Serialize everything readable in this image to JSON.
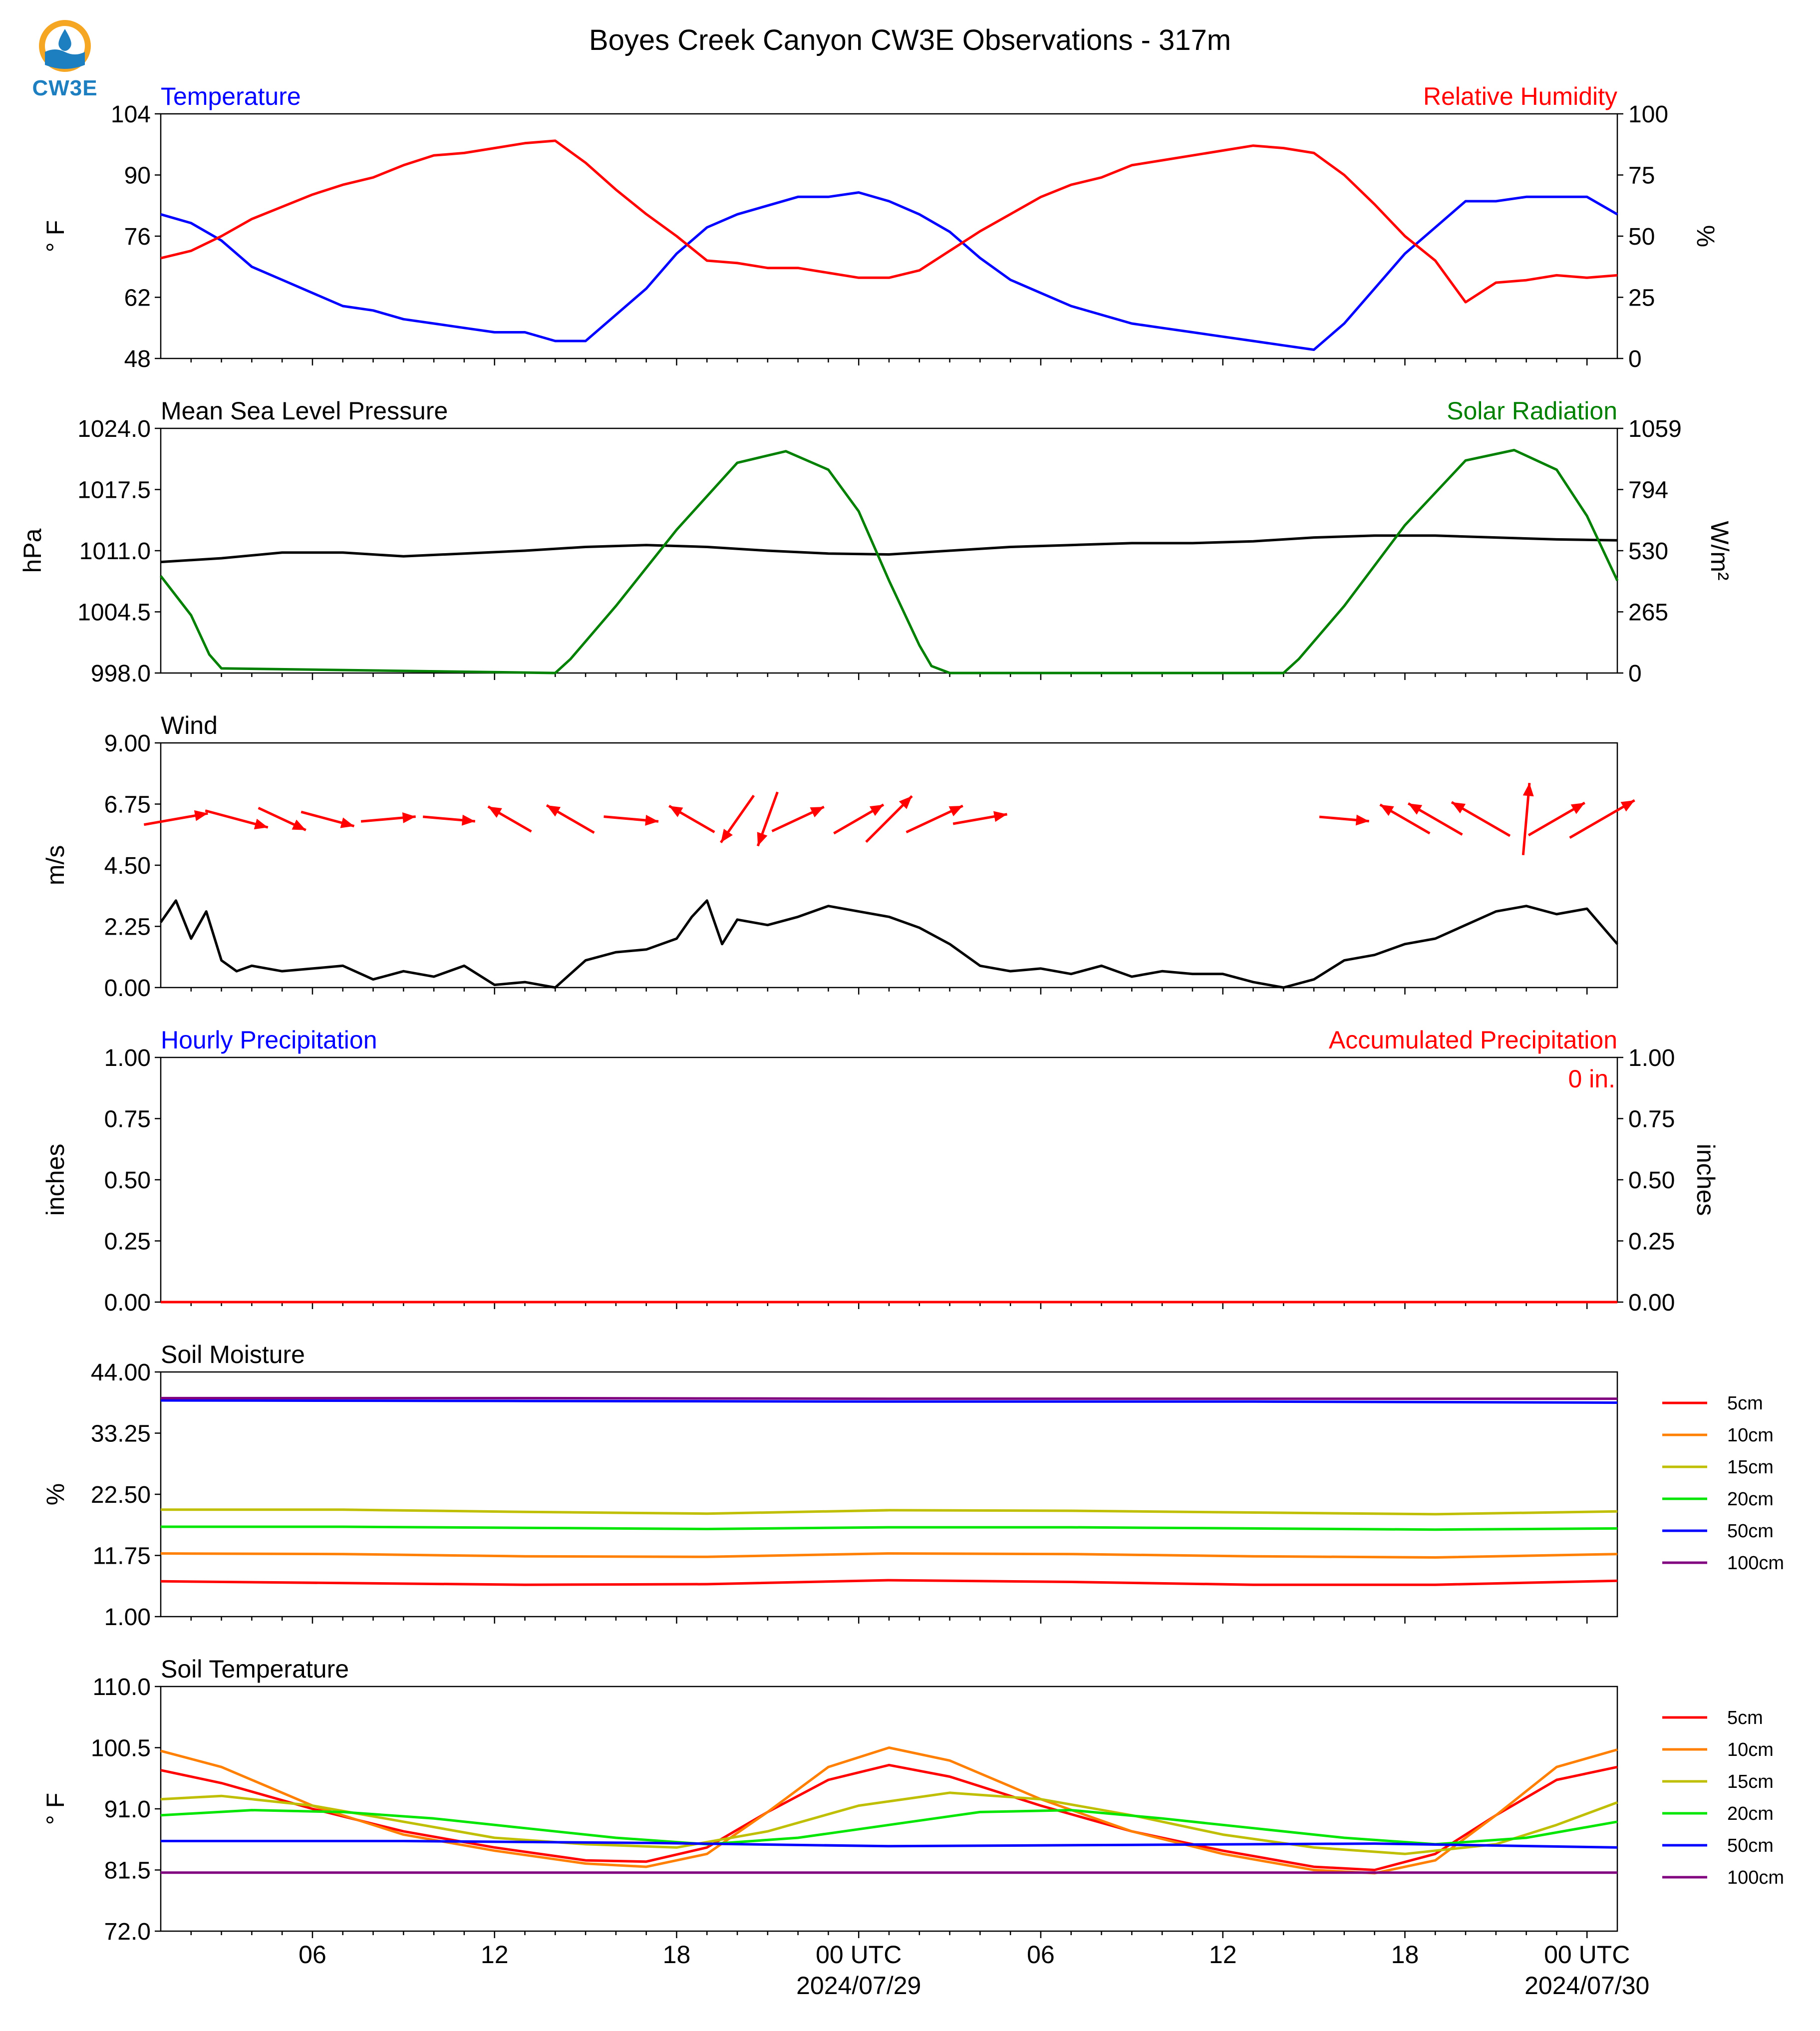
{
  "title": "Boyes Creek Canyon CW3E Observations - 317m",
  "logo": {
    "text": "CW3E",
    "icon": "cw3e-logo-icon"
  },
  "x_axis": {
    "tick_labels": [
      "06",
      "12",
      "18",
      "00 UTC",
      "06",
      "12",
      "18",
      "00 UTC"
    ],
    "tick_hours": [
      6,
      12,
      18,
      24,
      30,
      36,
      42,
      48
    ],
    "date_labels": [
      "2024/07/29",
      "2024/07/30"
    ],
    "date_label_hours": [
      24,
      48
    ],
    "range_hours": [
      1,
      49
    ]
  },
  "chart_data": [
    {
      "type": "line",
      "title_left": "Temperature",
      "title_right": "Relative Humidity",
      "ylabel_left": "° F",
      "ylabel_right": "%",
      "ylim_left": [
        48,
        104
      ],
      "yticks_left": [
        "48",
        "62",
        "76",
        "90",
        "104"
      ],
      "ylim_right": [
        0,
        100
      ],
      "yticks_right": [
        "0",
        "25",
        "50",
        "75",
        "100"
      ],
      "colors": {
        "left": "#0000ff",
        "right": "#ff0000"
      },
      "series": [
        {
          "name": "Temperature",
          "axis": "left",
          "color": "#0000ff",
          "x": [
            1,
            2,
            3,
            4,
            5,
            6,
            7,
            8,
            9,
            10,
            11,
            12,
            13,
            14,
            15,
            16,
            17,
            18,
            19,
            20,
            21,
            22,
            23,
            24,
            25,
            26,
            27,
            28,
            29,
            30,
            31,
            32,
            33,
            34,
            35,
            36,
            37,
            38,
            39,
            40,
            41,
            42,
            43,
            44,
            45,
            46,
            47,
            48,
            49
          ],
          "y": [
            81,
            79,
            75,
            69,
            66,
            63,
            60,
            59,
            57,
            56,
            55,
            54,
            54,
            52,
            52,
            58,
            64,
            72,
            78,
            81,
            83,
            85,
            85,
            86,
            84,
            81,
            77,
            71,
            66,
            63,
            60,
            58,
            56,
            55,
            54,
            53,
            52,
            51,
            50,
            56,
            64,
            72,
            78,
            84,
            84,
            85,
            85,
            85,
            81
          ]
        },
        {
          "name": "Relative Humidity",
          "axis": "right",
          "color": "#ff0000",
          "x": [
            1,
            2,
            3,
            4,
            5,
            6,
            7,
            8,
            9,
            10,
            11,
            12,
            13,
            14,
            15,
            16,
            17,
            18,
            19,
            20,
            21,
            22,
            23,
            24,
            25,
            26,
            27,
            28,
            29,
            30,
            31,
            32,
            33,
            34,
            35,
            36,
            37,
            38,
            39,
            40,
            41,
            42,
            43,
            44,
            45,
            46,
            47,
            48,
            49
          ],
          "y": [
            41,
            44,
            50,
            57,
            62,
            67,
            71,
            74,
            79,
            83,
            84,
            86,
            88,
            89,
            80,
            69,
            59,
            50,
            40,
            39,
            37,
            37,
            35,
            33,
            33,
            36,
            44,
            52,
            59,
            66,
            71,
            74,
            79,
            81,
            83,
            85,
            87,
            86,
            84,
            75,
            63,
            50,
            40,
            23,
            31,
            32,
            34,
            33,
            34
          ]
        }
      ]
    },
    {
      "type": "line",
      "title_left": "Mean Sea Level Pressure",
      "title_right": "Solar Radiation",
      "ylabel_left": "hPa",
      "ylabel_right": "W/m²",
      "ylim_left": [
        998.0,
        1024.0
      ],
      "yticks_left": [
        "998.0",
        "1004.5",
        "1011.0",
        "1017.5",
        "1024.0"
      ],
      "ylim_right": [
        0,
        1059
      ],
      "yticks_right": [
        "0",
        "265",
        "530",
        "794",
        "1059"
      ],
      "colors": {
        "left": "#000000",
        "right": "#008000"
      },
      "series": [
        {
          "name": "Mean Sea Level Pressure",
          "axis": "left",
          "color": "#000000",
          "x": [
            1,
            3,
            5,
            7,
            9,
            11,
            13,
            15,
            17,
            19,
            21,
            23,
            25,
            27,
            29,
            31,
            33,
            35,
            37,
            39,
            41,
            43,
            45,
            47,
            49
          ],
          "y": [
            1009.8,
            1010.2,
            1010.8,
            1010.8,
            1010.4,
            1010.7,
            1011.0,
            1011.4,
            1011.6,
            1011.4,
            1011.0,
            1010.7,
            1010.6,
            1011.0,
            1011.4,
            1011.6,
            1011.8,
            1011.8,
            1012.0,
            1012.4,
            1012.6,
            1012.6,
            1012.4,
            1012.2,
            1012.1
          ]
        },
        {
          "name": "Solar Radiation",
          "axis": "right",
          "color": "#008000",
          "x": [
            1,
            2,
            2.6,
            3,
            14,
            14.5,
            16,
            18,
            20,
            21.6,
            23,
            24,
            25,
            26,
            26.4,
            27,
            38,
            38.5,
            40,
            42,
            44,
            45.6,
            47,
            48,
            49
          ],
          "y": [
            420,
            250,
            80,
            20,
            0,
            60,
            290,
            620,
            910,
            960,
            880,
            700,
            400,
            120,
            30,
            0,
            0,
            60,
            290,
            640,
            920,
            965,
            880,
            680,
            400
          ]
        }
      ]
    },
    {
      "type": "line",
      "title_left": "Wind",
      "ylabel_left": "m/s",
      "ylim_left": [
        0.0,
        9.0
      ],
      "yticks_left": [
        "0.00",
        "2.25",
        "4.50",
        "6.75",
        "9.00"
      ],
      "colors": {
        "speed": "#000000",
        "arrows": "#ff0000"
      },
      "series": [
        {
          "name": "Wind Speed",
          "axis": "left",
          "color": "#000000",
          "x": [
            1,
            1.5,
            2,
            2.5,
            3,
            3.5,
            4,
            5,
            6,
            7,
            8,
            9,
            10,
            11,
            12,
            13,
            14,
            15,
            16,
            17,
            18,
            18.5,
            19,
            19.5,
            20,
            21,
            22,
            23,
            24,
            25,
            26,
            27,
            28,
            29,
            30,
            31,
            32,
            33,
            34,
            35,
            36,
            37,
            38,
            39,
            40,
            41,
            42,
            43,
            44,
            45,
            46,
            47,
            48,
            49
          ],
          "y": [
            2.4,
            3.2,
            1.8,
            2.8,
            1.0,
            0.6,
            0.8,
            0.6,
            0.7,
            0.8,
            0.3,
            0.6,
            0.4,
            0.8,
            0.1,
            0.2,
            0.0,
            1.0,
            1.3,
            1.4,
            1.8,
            2.6,
            3.2,
            1.6,
            2.5,
            2.3,
            2.6,
            3.0,
            2.8,
            2.6,
            2.2,
            1.6,
            0.8,
            0.6,
            0.7,
            0.5,
            0.8,
            0.4,
            0.6,
            0.5,
            0.5,
            0.2,
            0.0,
            0.3,
            1.0,
            1.2,
            1.6,
            1.8,
            2.3,
            2.8,
            3.0,
            2.7,
            2.9,
            1.6
          ]
        },
        {
          "name": "Wind Direction",
          "type": "arrows",
          "color": "#ff0000",
          "x": [
            1.5,
            3.5,
            5,
            6.5,
            8.5,
            10.5,
            12.5,
            14.5,
            16.5,
            18.5,
            20,
            21,
            22,
            24,
            25,
            26.5,
            28,
            40,
            42,
            43,
            44.5,
            46,
            47,
            48.5
          ],
          "speed": [
            2.6,
            2.6,
            2.1,
            2.2,
            2.2,
            2.1,
            2.0,
            2.2,
            2.2,
            2.1,
            2.3,
            2.3,
            2.3,
            2.3,
            2.6,
            2.5,
            2.2,
            2.0,
            2.3,
            2.5,
            2.7,
            2.9,
            2.6,
            3.0
          ],
          "direction_deg": [
            260,
            285,
            295,
            285,
            265,
            275,
            120,
            120,
            275,
            120,
            35,
            20,
            245,
            240,
            225,
            245,
            260,
            275,
            120,
            120,
            120,
            185,
            240,
            240
          ]
        }
      ]
    },
    {
      "type": "line",
      "title_left": "Hourly Precipitation",
      "title_right": "Accumulated Precipitation",
      "ylabel_left": "inches",
      "ylabel_right": "inches",
      "ylim_left": [
        0.0,
        1.0
      ],
      "yticks_left": [
        "0.00",
        "0.25",
        "0.50",
        "0.75",
        "1.00"
      ],
      "ylim_right": [
        0.0,
        1.0
      ],
      "yticks_right": [
        "0.00",
        "0.25",
        "0.50",
        "0.75",
        "1.00"
      ],
      "annotation": "0 in.",
      "colors": {
        "left": "#0000ff",
        "right": "#ff0000"
      },
      "series": [
        {
          "name": "Accumulated Precipitation",
          "axis": "right",
          "color": "#ff0000",
          "x": [
            1,
            49
          ],
          "y": [
            0,
            0
          ]
        }
      ]
    },
    {
      "type": "line",
      "title_left": "Soil Moisture",
      "ylabel_left": "%",
      "ylim_left": [
        1.0,
        44.0
      ],
      "yticks_left": [
        "1.00",
        "11.75",
        "22.50",
        "33.25",
        "44.00"
      ],
      "legend": "right",
      "series": [
        {
          "name": "5cm",
          "color": "#ff0000",
          "x": [
            1,
            7,
            13,
            19,
            25,
            31,
            37,
            43,
            49
          ],
          "y": [
            7.2,
            6.9,
            6.6,
            6.7,
            7.4,
            7.1,
            6.6,
            6.6,
            7.3
          ]
        },
        {
          "name": "10cm",
          "color": "#ff8000",
          "x": [
            1,
            7,
            13,
            19,
            25,
            31,
            37,
            43,
            49
          ],
          "y": [
            12.1,
            12.0,
            11.6,
            11.5,
            12.1,
            12.0,
            11.6,
            11.4,
            12.0
          ]
        },
        {
          "name": "15cm",
          "color": "#bfbf00",
          "x": [
            1,
            7,
            13,
            19,
            25,
            31,
            37,
            43,
            49
          ],
          "y": [
            19.8,
            19.8,
            19.4,
            19.1,
            19.7,
            19.6,
            19.3,
            19.0,
            19.5
          ]
        },
        {
          "name": "20cm",
          "color": "#00e600",
          "x": [
            1,
            7,
            13,
            19,
            25,
            31,
            37,
            43,
            49
          ],
          "y": [
            16.8,
            16.8,
            16.6,
            16.4,
            16.7,
            16.7,
            16.5,
            16.3,
            16.5
          ]
        },
        {
          "name": "50cm",
          "color": "#0000ff",
          "x": [
            1,
            13,
            25,
            37,
            49
          ],
          "y": [
            39.0,
            38.9,
            38.8,
            38.8,
            38.6
          ]
        },
        {
          "name": "100cm",
          "color": "#800080",
          "x": [
            1,
            13,
            25,
            37,
            49
          ],
          "y": [
            39.4,
            39.4,
            39.3,
            39.3,
            39.3
          ]
        }
      ]
    },
    {
      "type": "line",
      "title_left": "Soil Temperature",
      "ylabel_left": "° F",
      "ylim_left": [
        72.0,
        110.0
      ],
      "yticks_left": [
        "72.0",
        "81.5",
        "91.0",
        "100.5",
        "110.0"
      ],
      "legend": "right",
      "series": [
        {
          "name": "5cm",
          "color": "#ff0000",
          "x": [
            1,
            3,
            6,
            9,
            12,
            15,
            17,
            19,
            21,
            23,
            25,
            27,
            30,
            33,
            36,
            39,
            41,
            43,
            45,
            47,
            49
          ],
          "y": [
            97.0,
            95.0,
            91.0,
            87.5,
            85.0,
            83.0,
            82.8,
            85.0,
            90.5,
            95.5,
            97.8,
            96.0,
            91.5,
            87.5,
            84.5,
            82.0,
            81.5,
            84.0,
            90.0,
            95.5,
            97.5
          ]
        },
        {
          "name": "10cm",
          "color": "#ff8000",
          "x": [
            1,
            3,
            6,
            9,
            12,
            15,
            17,
            19,
            21,
            23,
            25,
            27,
            30,
            33,
            36,
            39,
            41,
            43,
            45,
            47,
            49
          ],
          "y": [
            100.0,
            97.5,
            91.5,
            87.0,
            84.5,
            82.5,
            82.0,
            84.0,
            90.5,
            97.5,
            100.5,
            98.5,
            92.5,
            87.5,
            84.0,
            81.5,
            81.0,
            83.0,
            90.0,
            97.5,
            100.2
          ]
        },
        {
          "name": "15cm",
          "color": "#bfbf00",
          "x": [
            1,
            3,
            6,
            9,
            12,
            15,
            18,
            21,
            24,
            27,
            30,
            33,
            36,
            39,
            42,
            45,
            47,
            49
          ],
          "y": [
            92.5,
            93.0,
            91.5,
            89.0,
            86.5,
            85.5,
            85.0,
            87.5,
            91.5,
            93.5,
            92.5,
            90.0,
            87.0,
            85.0,
            84.0,
            85.5,
            88.5,
            92.0
          ]
        },
        {
          "name": "20cm",
          "color": "#00e600",
          "x": [
            1,
            4,
            7,
            10,
            13,
            16,
            19,
            22,
            25,
            28,
            31,
            34,
            37,
            40,
            43,
            46,
            49
          ],
          "y": [
            90.0,
            90.8,
            90.5,
            89.5,
            88.0,
            86.5,
            85.5,
            86.5,
            88.5,
            90.5,
            90.8,
            89.5,
            88.0,
            86.5,
            85.5,
            86.5,
            89.0
          ]
        },
        {
          "name": "50cm",
          "color": "#0000ff",
          "x": [
            1,
            9,
            17,
            25,
            33,
            41,
            49
          ],
          "y": [
            86.0,
            86.0,
            85.7,
            85.2,
            85.4,
            85.6,
            85.0
          ]
        },
        {
          "name": "100cm",
          "color": "#800080",
          "x": [
            1,
            13,
            25,
            37,
            49
          ],
          "y": [
            81.1,
            81.1,
            81.1,
            81.1,
            81.1
          ]
        }
      ]
    }
  ]
}
